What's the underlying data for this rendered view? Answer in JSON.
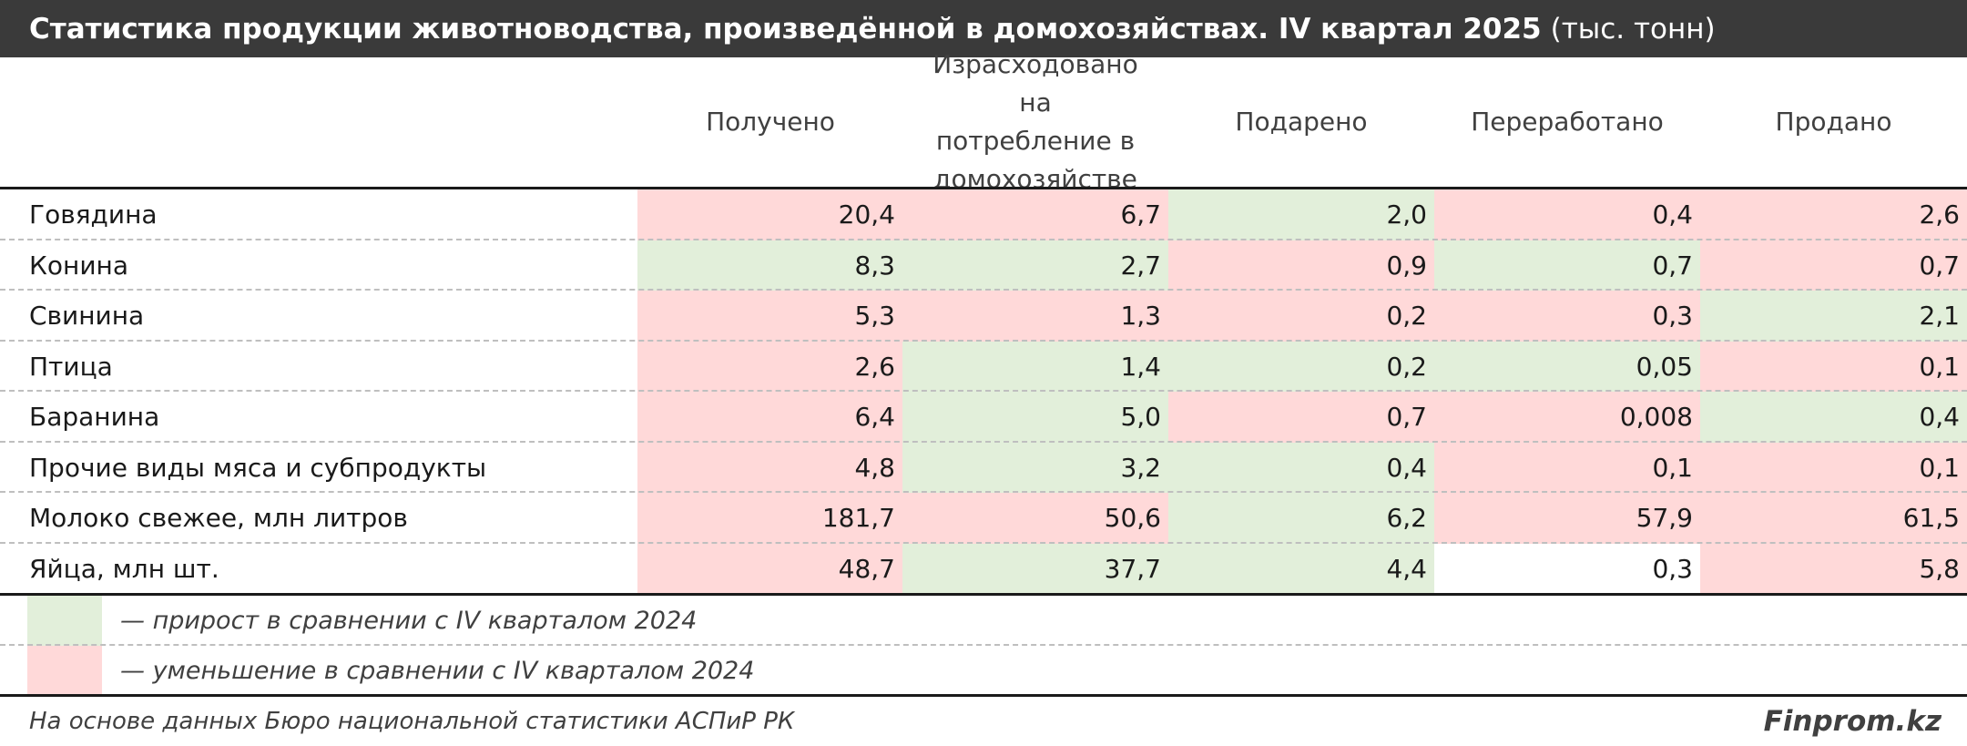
{
  "title": {
    "main": "Статистика продукции животноводства, произведённой в домохозяйствах. IV квартал 2025",
    "unit": "(тыс. тонн)"
  },
  "colors": {
    "increase": "#e2efda",
    "decrease": "#ffd9d9",
    "neutral": "#ffffff"
  },
  "chart_data": {
    "type": "table",
    "columns": [
      "Получено",
      "Израсходовано на потребление в домохозяйстве",
      "Подарено",
      "Переработано",
      "Продано"
    ],
    "rows": [
      {
        "label": "Говядина",
        "values": [
          "20,4",
          "6,7",
          "2,0",
          "0,4",
          "2,6"
        ],
        "trend": [
          "down",
          "down",
          "up",
          "down",
          "down"
        ]
      },
      {
        "label": "Конина",
        "values": [
          "8,3",
          "2,7",
          "0,9",
          "0,7",
          "0,7"
        ],
        "trend": [
          "up",
          "up",
          "down",
          "up",
          "down"
        ]
      },
      {
        "label": "Свинина",
        "values": [
          "5,3",
          "1,3",
          "0,2",
          "0,3",
          "2,1"
        ],
        "trend": [
          "down",
          "down",
          "down",
          "down",
          "up"
        ]
      },
      {
        "label": "Птица",
        "values": [
          "2,6",
          "1,4",
          "0,2",
          "0,05",
          "0,1"
        ],
        "trend": [
          "down",
          "up",
          "up",
          "up",
          "down"
        ]
      },
      {
        "label": "Баранина",
        "values": [
          "6,4",
          "5,0",
          "0,7",
          "0,008",
          "0,4"
        ],
        "trend": [
          "down",
          "up",
          "down",
          "down",
          "up"
        ]
      },
      {
        "label": "Прочие виды мяса и субпродукты",
        "values": [
          "4,8",
          "3,2",
          "0,4",
          "0,1",
          "0,1"
        ],
        "trend": [
          "down",
          "up",
          "up",
          "down",
          "down"
        ]
      },
      {
        "label": "Молоко свежее, млн литров",
        "values": [
          "181,7",
          "50,6",
          "6,2",
          "57,9",
          "61,5"
        ],
        "trend": [
          "down",
          "down",
          "up",
          "down",
          "down"
        ]
      },
      {
        "label": "Яйца, млн шт.",
        "values": [
          "48,7",
          "37,7",
          "4,4",
          "0,3",
          "5,8"
        ],
        "trend": [
          "down",
          "up",
          "up",
          "none",
          "down"
        ]
      }
    ]
  },
  "legend": {
    "increase": "— прирост в сравнении с IV кварталом 2024",
    "decrease": "— уменьшение в сравнении с IV кварталом 2024"
  },
  "footer": {
    "source": "На основе данных Бюро национальной статистики АСПиР РК",
    "brand": "Finprom.kz"
  }
}
